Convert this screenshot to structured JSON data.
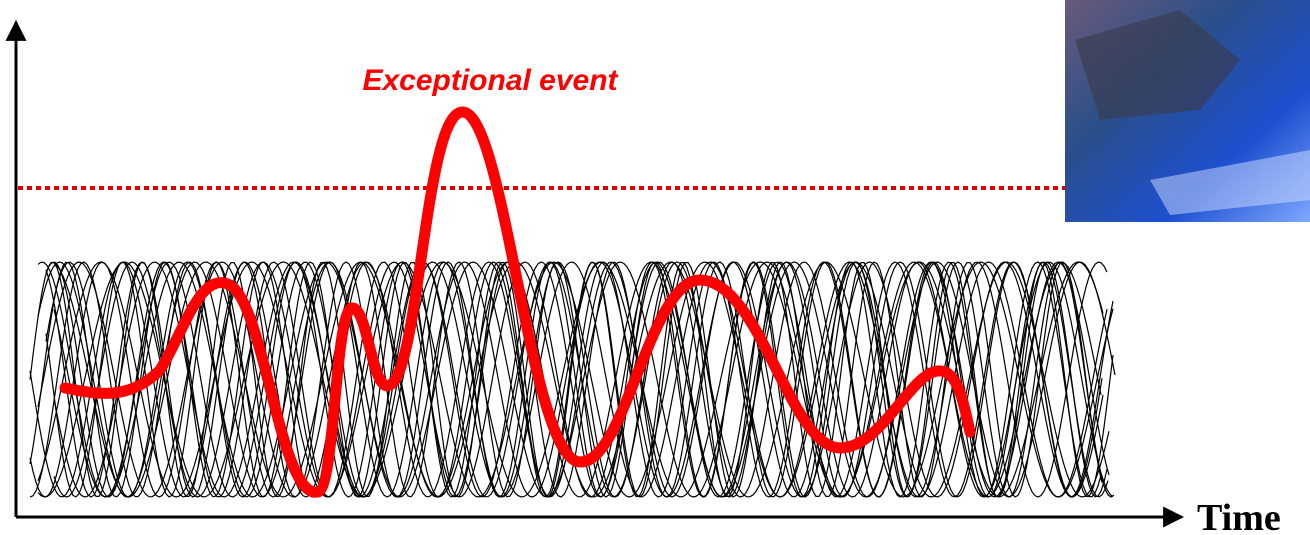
{
  "labels": {
    "annotation": "Exceptional event",
    "x_axis": "Time"
  }
}
